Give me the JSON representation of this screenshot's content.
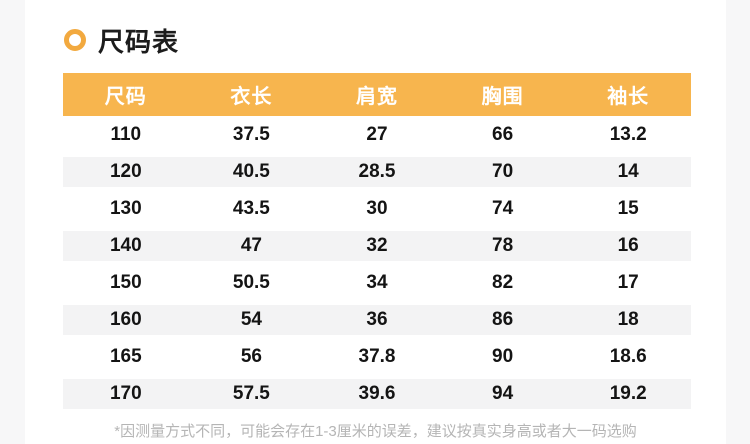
{
  "page": {
    "side_bg": "#f7f7f8",
    "content_bg": "#ffffff"
  },
  "title": {
    "text": "尺码表",
    "ring_color": "#f2a93f"
  },
  "size_table": {
    "header_bg": "#f7b54e",
    "stripe_bg": "#f3f3f4",
    "columns": [
      "尺码",
      "衣长",
      "肩宽",
      "胸围",
      "袖长"
    ],
    "rows": [
      [
        "110",
        "37.5",
        "27",
        "66",
        "13.2"
      ],
      [
        "120",
        "40.5",
        "28.5",
        "70",
        "14"
      ],
      [
        "130",
        "43.5",
        "30",
        "74",
        "15"
      ],
      [
        "140",
        "47",
        "32",
        "78",
        "16"
      ],
      [
        "150",
        "50.5",
        "34",
        "82",
        "17"
      ],
      [
        "160",
        "54",
        "36",
        "86",
        "18"
      ],
      [
        "165",
        "56",
        "37.8",
        "90",
        "18.6"
      ],
      [
        "170",
        "57.5",
        "39.6",
        "94",
        "19.2"
      ]
    ]
  },
  "footnote": {
    "text": "*因测量方式不同，可能会存在1-3厘米的误差，建议按真实身高或者大一码选购"
  }
}
